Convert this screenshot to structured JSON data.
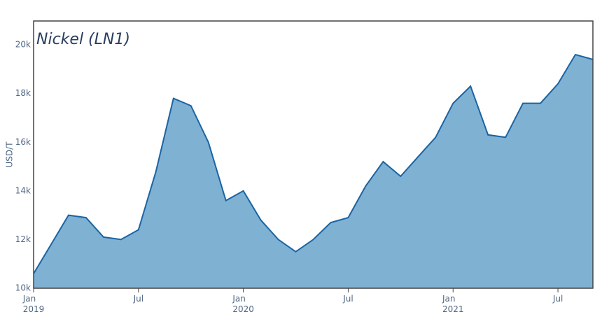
{
  "chart_data": {
    "type": "area",
    "title": "Nickel (LN1)",
    "y_label": "USD/T",
    "x": [
      "2019-01",
      "2019-02",
      "2019-03",
      "2019-04",
      "2019-05",
      "2019-06",
      "2019-07",
      "2019-08",
      "2019-09",
      "2019-10",
      "2019-11",
      "2019-12",
      "2020-01",
      "2020-02",
      "2020-03",
      "2020-04",
      "2020-05",
      "2020-06",
      "2020-07",
      "2020-08",
      "2020-09",
      "2020-10",
      "2020-11",
      "2020-12",
      "2021-01",
      "2021-02",
      "2021-03",
      "2021-04",
      "2021-05",
      "2021-06",
      "2021-07",
      "2021-08",
      "2021-09"
    ],
    "values": [
      10600,
      11800,
      13000,
      12900,
      12100,
      12000,
      12400,
      14800,
      17800,
      17500,
      16000,
      13600,
      14000,
      12800,
      12000,
      11500,
      12000,
      12700,
      12900,
      14200,
      15200,
      14600,
      15400,
      16200,
      17600,
      18300,
      16300,
      16200,
      17600,
      17600,
      18400,
      19600,
      19400
    ],
    "line_color": "#1a64a3",
    "fill_color": "#7fb1d3",
    "xlim": [
      "2019-01",
      "2021-09"
    ],
    "xticks": [
      {
        "value": "2019-01",
        "label": "Jan\n2019"
      },
      {
        "value": "2019-07",
        "label": "Jul"
      },
      {
        "value": "2020-01",
        "label": "Jan\n2020"
      },
      {
        "value": "2020-07",
        "label": "Jul"
      },
      {
        "value": "2021-01",
        "label": "Jan\n2021"
      },
      {
        "value": "2021-07",
        "label": "Jul"
      }
    ],
    "ylim": [
      10000,
      20980
    ],
    "yticks": [
      {
        "value": 10000,
        "label": "10k"
      },
      {
        "value": 12000,
        "label": "12k"
      },
      {
        "value": 14000,
        "label": "14k"
      },
      {
        "value": 16000,
        "label": "16k"
      },
      {
        "value": 18000,
        "label": "18k"
      },
      {
        "value": 20000,
        "label": "20k"
      }
    ]
  }
}
